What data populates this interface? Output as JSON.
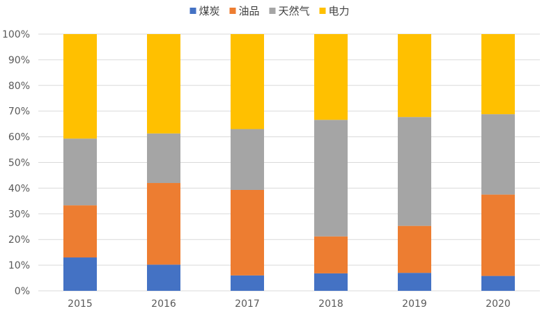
{
  "chart_data": {
    "type": "bar",
    "stacked": true,
    "percent": true,
    "categories": [
      "2015",
      "2016",
      "2017",
      "2018",
      "2019",
      "2020"
    ],
    "series": [
      {
        "name": "煤炭",
        "color": "#4472c4",
        "values": [
          13,
          10.2,
          6,
          6.8,
          7,
          5.8
        ]
      },
      {
        "name": "油品",
        "color": "#ed7d31",
        "values": [
          20.3,
          31.8,
          33.3,
          14.4,
          18.3,
          31.7
        ]
      },
      {
        "name": "天然气",
        "color": "#a5a5a5",
        "values": [
          26,
          19.3,
          23.7,
          45.4,
          42.4,
          31.3
        ]
      },
      {
        "name": "电力",
        "color": "#ffc000",
        "values": [
          40.7,
          38.7,
          37,
          33.4,
          32.3,
          31.2
        ]
      }
    ],
    "ylim": [
      0,
      100
    ],
    "yticks": [
      "0%",
      "10%",
      "20%",
      "30%",
      "40%",
      "50%",
      "60%",
      "70%",
      "80%",
      "90%",
      "100%"
    ],
    "grid": true,
    "legend": "top-center",
    "title": "",
    "xlabel": "",
    "ylabel": ""
  }
}
